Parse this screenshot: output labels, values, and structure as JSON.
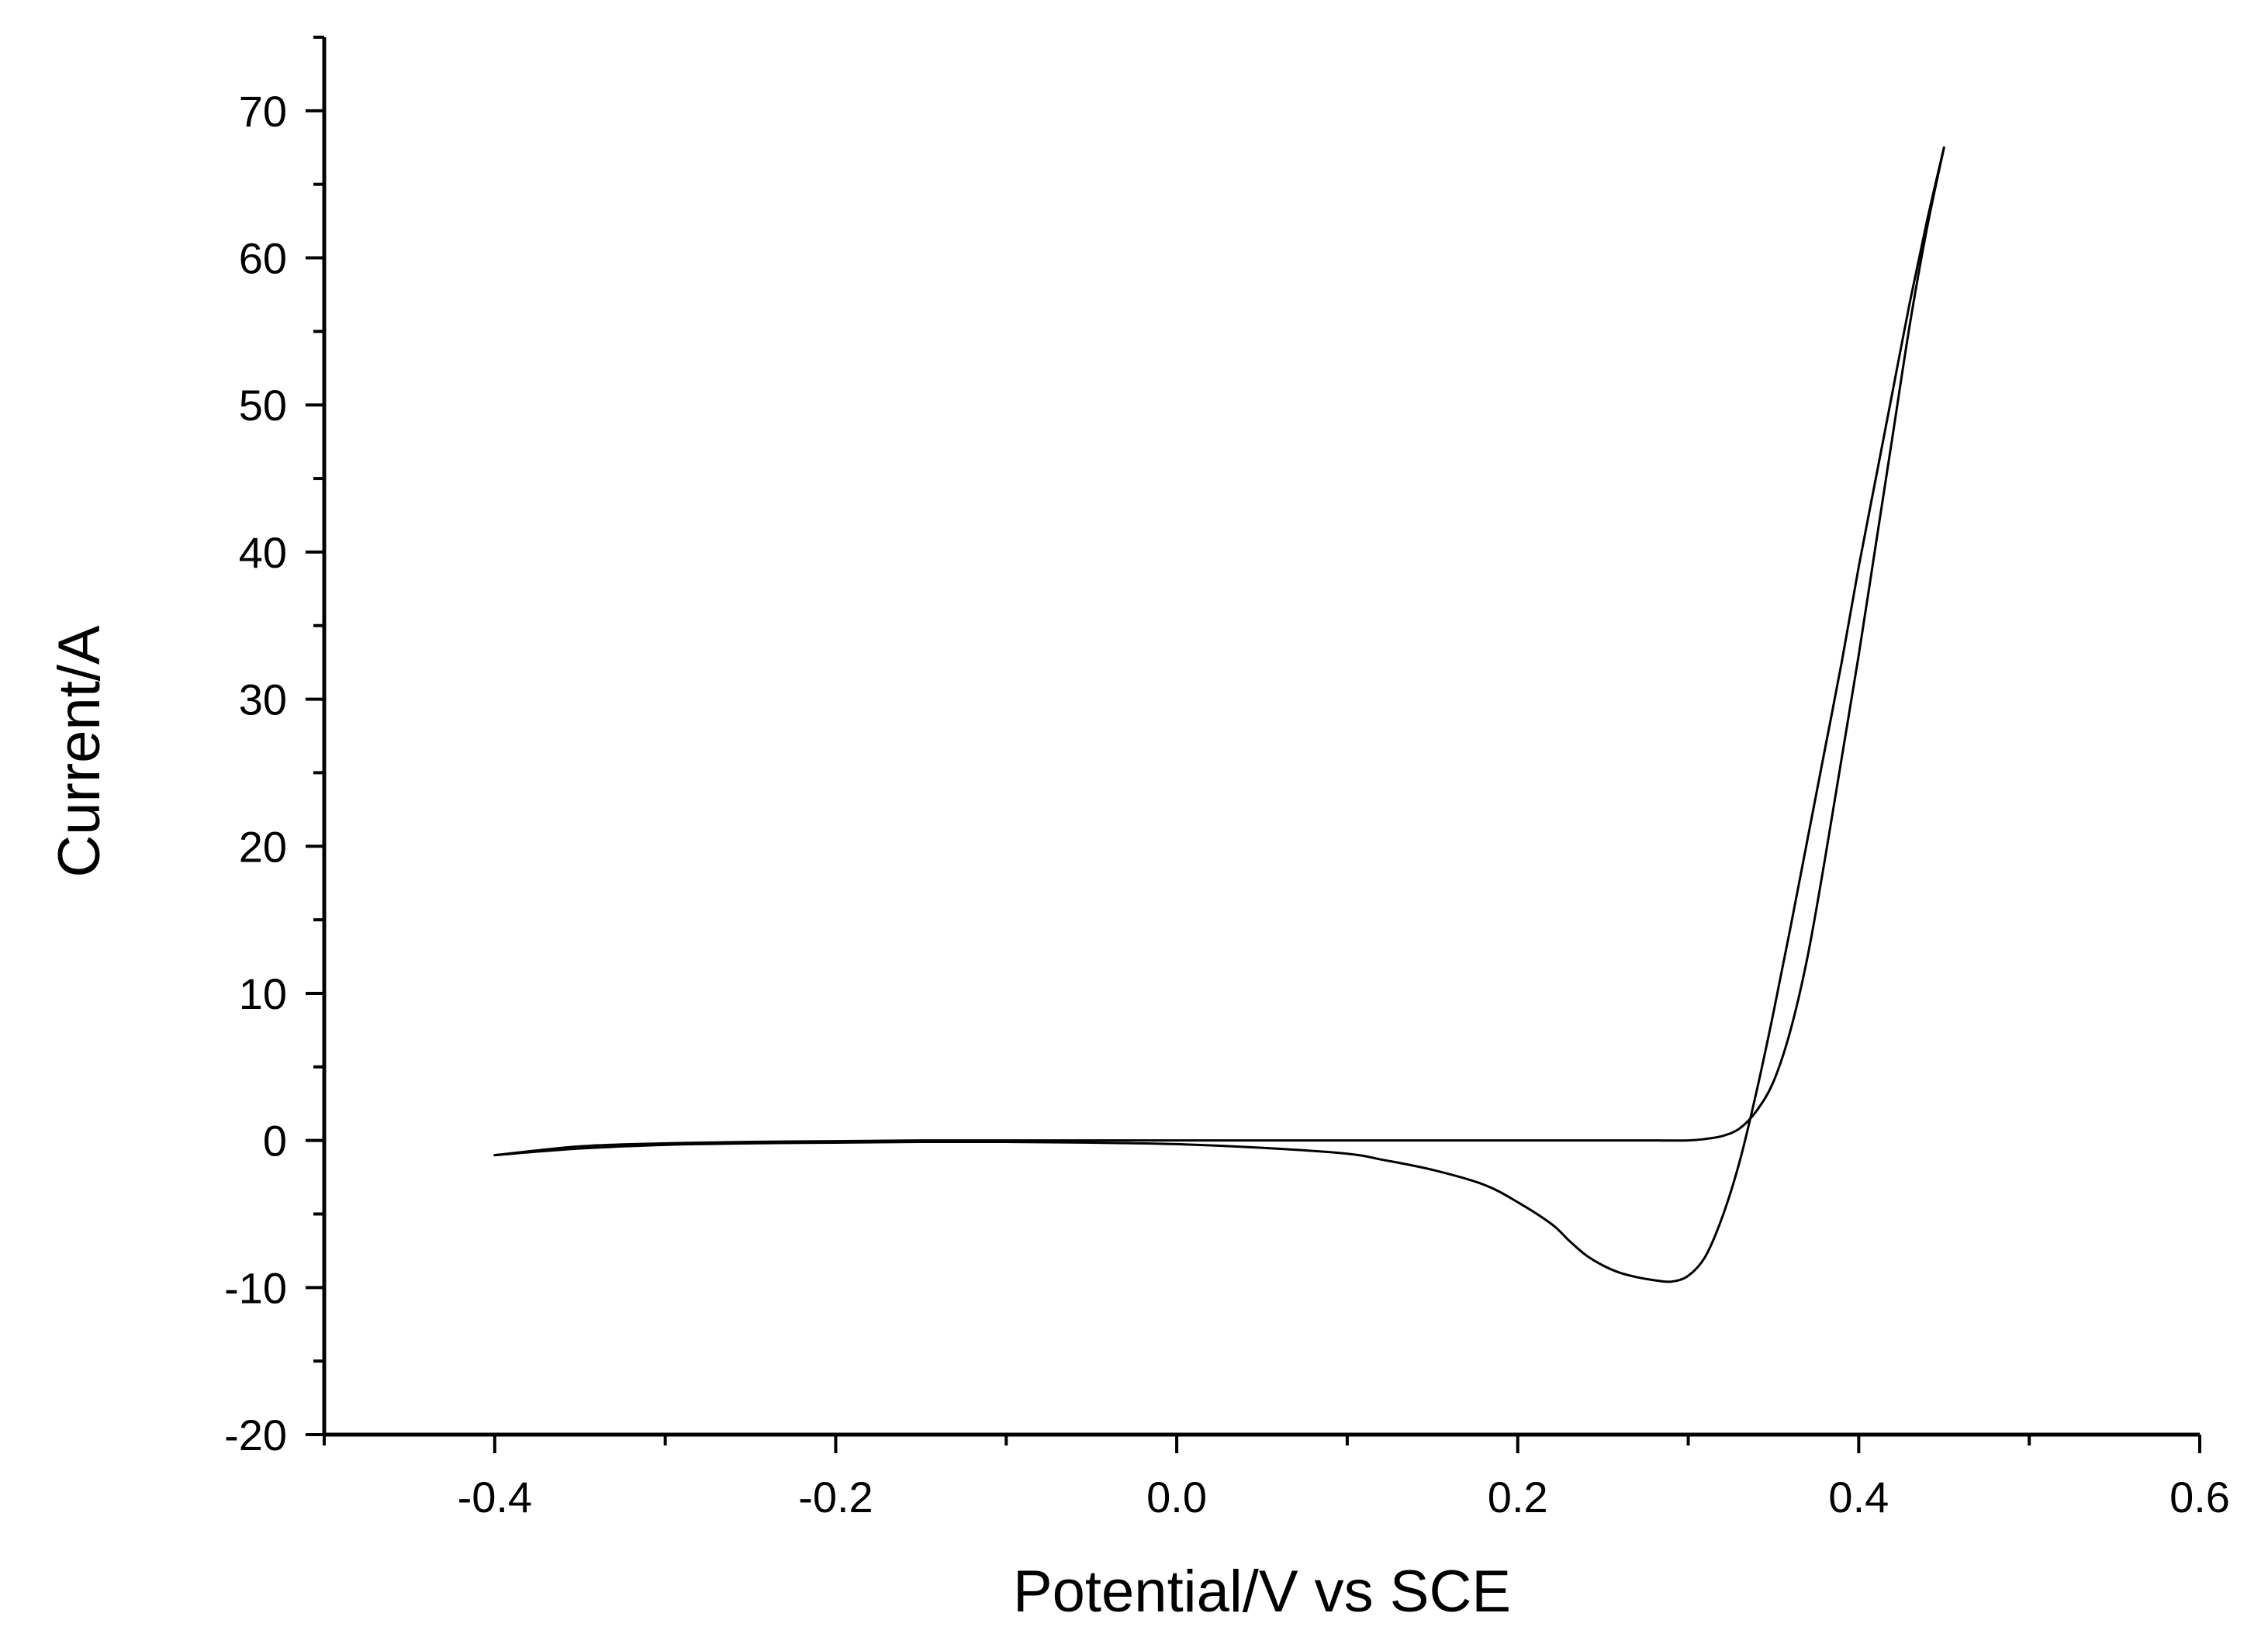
{
  "chart_data": {
    "type": "line",
    "title": "",
    "xlabel": "Potential/V vs SCE",
    "ylabel": "Current/A",
    "xlim": [
      -0.5,
      0.6
    ],
    "ylim": [
      -20,
      75
    ],
    "x_ticks": [
      -0.4,
      -0.2,
      0.0,
      0.2,
      0.4,
      0.6
    ],
    "x_tick_labels": [
      "-0.4",
      "-0.2",
      "0.0",
      "0.2",
      "0.4",
      "0.6"
    ],
    "y_ticks": [
      -20,
      -10,
      0,
      10,
      20,
      30,
      40,
      50,
      60,
      70
    ],
    "y_tick_labels": [
      "-20",
      "-10",
      "0",
      "10",
      "20",
      "30",
      "40",
      "50",
      "60",
      "70"
    ],
    "grid": false,
    "legend": "none",
    "line_color": "#000000",
    "series": [
      {
        "x": [
          -0.4,
          -0.35,
          -0.3,
          -0.25,
          -0.2,
          -0.15,
          -0.1,
          -0.05,
          0.0,
          0.05,
          0.1,
          0.15,
          0.2,
          0.25,
          0.28,
          0.3,
          0.31,
          0.32,
          0.33,
          0.34,
          0.35,
          0.36,
          0.37,
          0.38,
          0.39,
          0.4,
          0.41,
          0.42,
          0.43,
          0.44,
          0.45
        ],
        "y": [
          -1.0,
          -0.4,
          -0.2,
          -0.1,
          -0.05,
          0.0,
          0.0,
          0.0,
          0.0,
          0.0,
          0.0,
          0.0,
          0.0,
          0.0,
          0.0,
          0.0,
          0.1,
          0.3,
          0.8,
          2.0,
          4.0,
          7.5,
          12.5,
          19.0,
          26.0,
          33.0,
          40.5,
          48.0,
          55.5,
          62.0,
          67.5
        ]
      },
      {
        "x": [
          0.45,
          0.44,
          0.43,
          0.42,
          0.41,
          0.4,
          0.39,
          0.38,
          0.37,
          0.36,
          0.35,
          0.34,
          0.33,
          0.32,
          0.31,
          0.3,
          0.29,
          0.28,
          0.27,
          0.26,
          0.25,
          0.24,
          0.23,
          0.22,
          0.2,
          0.18,
          0.15,
          0.12,
          0.1,
          0.05,
          0.0,
          -0.05,
          -0.1,
          -0.15,
          -0.2,
          -0.25,
          -0.3,
          -0.35,
          -0.4
        ],
        "y": [
          67.5,
          62.5,
          57.0,
          51.0,
          45.0,
          39.0,
          32.5,
          26.5,
          20.5,
          14.5,
          8.7,
          3.3,
          -1.5,
          -5.2,
          -7.9,
          -9.2,
          -9.6,
          -9.5,
          -9.3,
          -9.0,
          -8.5,
          -7.8,
          -6.8,
          -5.7,
          -4.2,
          -3.0,
          -2.0,
          -1.3,
          -0.9,
          -0.5,
          -0.25,
          -0.15,
          -0.1,
          -0.1,
          -0.15,
          -0.2,
          -0.3,
          -0.55,
          -1.0
        ]
      }
    ]
  }
}
